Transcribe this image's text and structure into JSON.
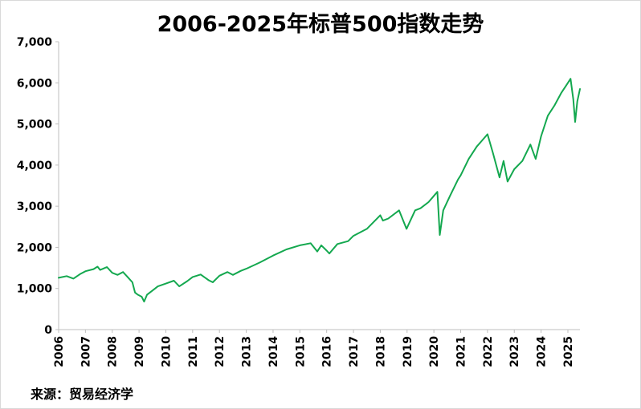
{
  "chart_data": {
    "type": "line",
    "title": "2006-2025年标普500指数走势",
    "xlabel": "",
    "ylabel": "",
    "ylim": [
      0,
      7000
    ],
    "xlim": [
      2006.0,
      2025.45
    ],
    "y_ticks": [
      "0",
      "1,000",
      "2,000",
      "3,000",
      "4,000",
      "5,000",
      "6,000",
      "7,000"
    ],
    "y_tick_values": [
      0,
      1000,
      2000,
      3000,
      4000,
      5000,
      6000,
      7000
    ],
    "x_ticks": [
      "2006",
      "2007",
      "2008",
      "2009",
      "2010",
      "2011",
      "2012",
      "2013",
      "2014",
      "2015",
      "2016",
      "2017",
      "2018",
      "2019",
      "2020",
      "2021",
      "2022",
      "2023",
      "2024",
      "2025"
    ],
    "x_tick_values": [
      2006,
      2007,
      2008,
      2009,
      2010,
      2011,
      2012,
      2013,
      2014,
      2015,
      2016,
      2017,
      2018,
      2019,
      2020,
      2021,
      2022,
      2023,
      2024,
      2025
    ],
    "grid": false,
    "legend": "none",
    "line_color": "#14a84f",
    "series": [
      {
        "x": [
          2006.0,
          2006.3,
          2006.55,
          2006.8,
          2007.0,
          2007.3,
          2007.45,
          2007.55,
          2007.8,
          2008.0,
          2008.2,
          2008.4,
          2008.6,
          2008.75,
          2008.85,
          2008.95,
          2009.1,
          2009.19,
          2009.3,
          2009.5,
          2009.7,
          2010.0,
          2010.3,
          2010.5,
          2010.8,
          2011.0,
          2011.3,
          2011.6,
          2011.75,
          2012.0,
          2012.3,
          2012.5,
          2012.8,
          2013.0,
          2013.5,
          2014.0,
          2014.5,
          2015.0,
          2015.4,
          2015.65,
          2015.8,
          2016.0,
          2016.1,
          2016.4,
          2016.8,
          2017.0,
          2017.5,
          2018.0,
          2018.1,
          2018.3,
          2018.7,
          2018.98,
          2019.3,
          2019.5,
          2019.8,
          2020.0,
          2020.13,
          2020.22,
          2020.35,
          2020.6,
          2020.9,
          2021.0,
          2021.3,
          2021.6,
          2021.8,
          2022.0,
          2022.2,
          2022.45,
          2022.6,
          2022.75,
          2023.0,
          2023.3,
          2023.6,
          2023.8,
          2024.0,
          2024.25,
          2024.5,
          2024.75,
          2024.95,
          2025.1,
          2025.2,
          2025.27,
          2025.35,
          2025.45
        ],
        "y": [
          1260,
          1300,
          1240,
          1350,
          1420,
          1470,
          1530,
          1450,
          1520,
          1380,
          1330,
          1400,
          1260,
          1150,
          900,
          850,
          800,
          680,
          850,
          950,
          1050,
          1120,
          1190,
          1050,
          1180,
          1280,
          1340,
          1200,
          1150,
          1310,
          1400,
          1330,
          1430,
          1480,
          1630,
          1800,
          1950,
          2050,
          2100,
          1900,
          2050,
          1920,
          1850,
          2080,
          2150,
          2280,
          2450,
          2780,
          2650,
          2700,
          2900,
          2450,
          2900,
          2950,
          3100,
          3250,
          3350,
          2300,
          2900,
          3250,
          3650,
          3750,
          4150,
          4450,
          4600,
          4750,
          4300,
          3700,
          4100,
          3600,
          3900,
          4100,
          4500,
          4150,
          4700,
          5200,
          5450,
          5750,
          5950,
          6100,
          5600,
          5050,
          5550,
          5850
        ]
      }
    ]
  },
  "source": "来源：贸易经济学"
}
